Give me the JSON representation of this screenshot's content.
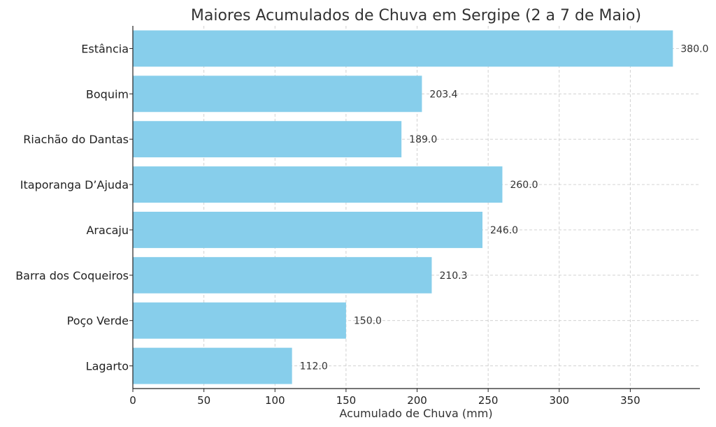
{
  "chart_data": {
    "type": "bar",
    "orientation": "horizontal",
    "title": "Maiores Acumulados de Chuva em Sergipe (2 a 7 de Maio)",
    "xlabel": "Acumulado de Chuva (mm)",
    "ylabel": "",
    "categories": [
      "Estância",
      "Boquim",
      "Riachão do Dantas",
      "Itaporanga D’Ajuda",
      "Aracaju",
      "Barra dos Coqueiros",
      "Poço Verde",
      "Lagarto"
    ],
    "values": [
      380.0,
      203.4,
      189.0,
      260.0,
      246.0,
      210.3,
      150.0,
      112.0
    ],
    "value_labels": [
      "380.0",
      "203.4",
      "189.0",
      "260.0",
      "246.0",
      "210.3",
      "150.0",
      "112.0"
    ],
    "xlim": [
      0,
      399
    ],
    "xticks": [
      0,
      50,
      100,
      150,
      200,
      250,
      300,
      350
    ],
    "xtick_labels": [
      "0",
      "50",
      "100",
      "150",
      "200",
      "250",
      "300",
      "350"
    ],
    "grid": true,
    "bar_color": "#87CEEB"
  }
}
